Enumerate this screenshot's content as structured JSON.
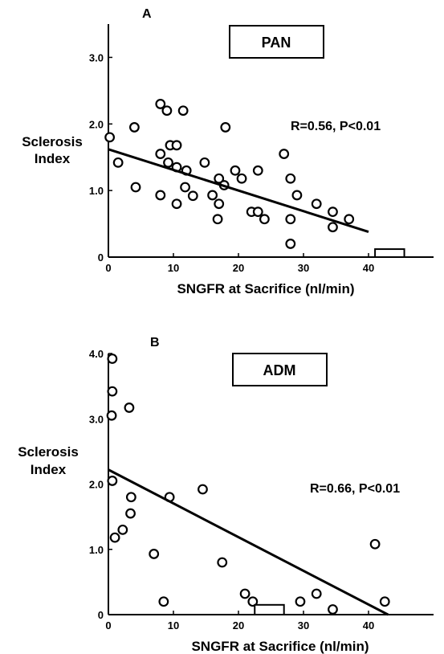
{
  "chart_data": [
    {
      "type": "scatter",
      "panel": "A",
      "title": "PAN",
      "xlabel": "SNGFR at Sacrifice (nl/min)",
      "ylabel": "Sclerosis Index",
      "xlim": [
        0,
        50
      ],
      "ylim": [
        0,
        3.5
      ],
      "x_ticks": [
        0,
        10,
        20,
        30,
        40
      ],
      "y_ticks": [
        0,
        1.0,
        2.0,
        3.0
      ],
      "y_tick_labels": [
        "0",
        "1.0",
        "2.0",
        "3.0"
      ],
      "stat_text": "R=0.56,  P<0.01",
      "fit_line": {
        "x": [
          0,
          40
        ],
        "y": [
          1.62,
          0.38
        ]
      },
      "points": [
        [
          0.2,
          1.8
        ],
        [
          1.5,
          1.42
        ],
        [
          4,
          1.95
        ],
        [
          4.2,
          1.05
        ],
        [
          8,
          2.3
        ],
        [
          9,
          2.2
        ],
        [
          11.5,
          2.2
        ],
        [
          8,
          1.55
        ],
        [
          9.5,
          1.68
        ],
        [
          10.5,
          1.68
        ],
        [
          9.2,
          1.42
        ],
        [
          10.5,
          1.35
        ],
        [
          8,
          0.93
        ],
        [
          10.5,
          0.8
        ],
        [
          12,
          1.3
        ],
        [
          14.8,
          1.42
        ],
        [
          11.8,
          1.05
        ],
        [
          13,
          0.92
        ],
        [
          16,
          0.93
        ],
        [
          17,
          1.18
        ],
        [
          17,
          0.8
        ],
        [
          16.8,
          0.57
        ],
        [
          17.8,
          1.08
        ],
        [
          18,
          1.95
        ],
        [
          19.5,
          1.3
        ],
        [
          20.5,
          1.18
        ],
        [
          22,
          0.68
        ],
        [
          23,
          0.68
        ],
        [
          23,
          1.3
        ],
        [
          24,
          0.57
        ],
        [
          27,
          1.55
        ],
        [
          28,
          1.18
        ],
        [
          29,
          0.93
        ],
        [
          28,
          0.57
        ],
        [
          28,
          0.2
        ],
        [
          32,
          0.8
        ],
        [
          34.5,
          0.68
        ],
        [
          34.5,
          0.45
        ],
        [
          37,
          0.57
        ]
      ],
      "bars": [
        {
          "x0": 41,
          "x1": 45.5,
          "y": 0.12
        }
      ]
    },
    {
      "type": "scatter",
      "panel": "B",
      "title": "ADM",
      "xlabel": "SNGFR at Sacrifice (nl/min)",
      "ylabel": "Sclerosis Index",
      "xlim": [
        0,
        50
      ],
      "ylim": [
        0,
        4.0
      ],
      "x_ticks": [
        0,
        10,
        20,
        30,
        40
      ],
      "y_ticks": [
        0,
        1.0,
        2.0,
        3.0,
        4.0
      ],
      "y_tick_labels": [
        "0",
        "1.0",
        "2.0",
        "3.0",
        "4.0"
      ],
      "stat_text": "R=0.66,  P<0.01",
      "fit_line": {
        "x": [
          0,
          43
        ],
        "y": [
          2.22,
          0
        ]
      },
      "points": [
        [
          0.6,
          3.92
        ],
        [
          0.6,
          3.42
        ],
        [
          0.5,
          3.05
        ],
        [
          3.2,
          3.17
        ],
        [
          0.6,
          2.05
        ],
        [
          3.5,
          1.8
        ],
        [
          3.4,
          1.55
        ],
        [
          2.2,
          1.3
        ],
        [
          1,
          1.18
        ],
        [
          9.4,
          1.8
        ],
        [
          14.5,
          1.92
        ],
        [
          7,
          0.93
        ],
        [
          8.5,
          0.2
        ],
        [
          17.5,
          0.8
        ],
        [
          21,
          0.32
        ],
        [
          22.2,
          0.2
        ],
        [
          29.5,
          0.2
        ],
        [
          32,
          0.32
        ],
        [
          34.5,
          0.08
        ],
        [
          41,
          1.08
        ],
        [
          42.5,
          0.2
        ]
      ],
      "bars": [
        {
          "x0": 22.5,
          "x1": 27,
          "y": 0.15
        }
      ]
    }
  ]
}
